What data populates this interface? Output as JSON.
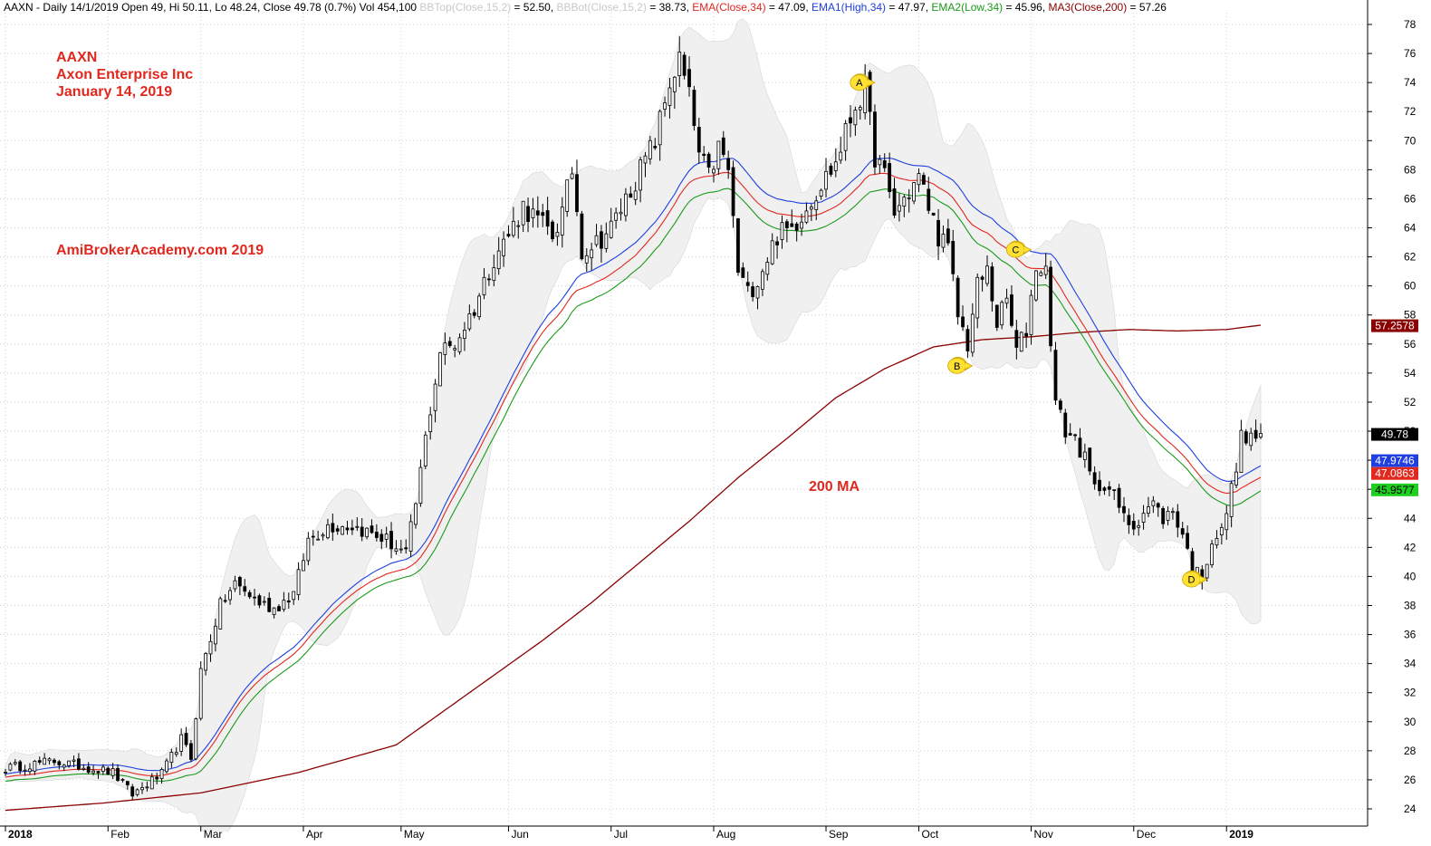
{
  "header": {
    "symbol": "AAXN",
    "segments": [
      {
        "text": "AAXN - Daily 14/1/2019 Open 49, Hi 50.11, Lo 48.24, Close 49.78 (0.7%) Vol 454,100 ",
        "color": "#000000"
      },
      {
        "text": "BBTop(Close,15,2)",
        "color": "#c8c8c8"
      },
      {
        "text": " = 52.50, ",
        "color": "#000000"
      },
      {
        "text": "BBBot(Close,15,2)",
        "color": "#c8c8c8"
      },
      {
        "text": " = 38.73, ",
        "color": "#000000"
      },
      {
        "text": "EMA(Close,34)",
        "color": "#e0281e"
      },
      {
        "text": " = 47.09, ",
        "color": "#000000"
      },
      {
        "text": "EMA1(High,34)",
        "color": "#1f3fe0"
      },
      {
        "text": " = 47.97, ",
        "color": "#000000"
      },
      {
        "text": "EMA2(Low,34)",
        "color": "#1a9a1a"
      },
      {
        "text": " = 45.96, ",
        "color": "#000000"
      },
      {
        "text": "MA3(Close,200)",
        "color": "#8b0000"
      },
      {
        "text": " = 57.26",
        "color": "#000000"
      }
    ]
  },
  "annotations": {
    "ticker": "AAXN",
    "company": "Axon Enterprise Inc",
    "date": "January 14, 2019",
    "watermark": "AmiBrokerAcademy.com  2019",
    "ma_label": "200 MA"
  },
  "chart_data": {
    "type": "candlestick",
    "y_ticks": [
      24,
      26,
      28,
      30,
      32,
      34,
      36,
      38,
      40,
      42,
      44,
      46,
      48,
      50,
      52,
      54,
      56,
      58,
      60,
      62,
      64,
      66,
      68,
      70,
      72,
      74,
      76,
      78
    ],
    "ylim": [
      23,
      79.5
    ],
    "x_months": [
      {
        "label": "2018",
        "bold": true
      },
      {
        "label": "Feb",
        "bold": false
      },
      {
        "label": "Mar",
        "bold": false
      },
      {
        "label": "Apr",
        "bold": false
      },
      {
        "label": "May",
        "bold": false
      },
      {
        "label": "Jun",
        "bold": false
      },
      {
        "label": "Jul",
        "bold": false
      },
      {
        "label": "Aug",
        "bold": false
      },
      {
        "label": "Sep",
        "bold": false
      },
      {
        "label": "Oct",
        "bold": false
      },
      {
        "label": "Nov",
        "bold": false
      },
      {
        "label": "Dec",
        "bold": false
      },
      {
        "label": "2019",
        "bold": true
      }
    ],
    "month_start_bar": [
      0,
      21,
      40,
      61,
      81,
      103,
      124,
      145,
      168,
      187,
      210,
      231,
      250
    ],
    "anchors": [
      [
        0,
        26.8
      ],
      [
        10,
        27.3
      ],
      [
        22,
        26.5
      ],
      [
        26,
        25.0
      ],
      [
        32,
        26.4
      ],
      [
        36,
        28.8
      ],
      [
        38,
        27.5
      ],
      [
        40,
        33.5
      ],
      [
        44,
        38.0
      ],
      [
        47,
        39.5
      ],
      [
        52,
        38.2
      ],
      [
        55,
        37.8
      ],
      [
        59,
        38.8
      ],
      [
        62,
        42.5
      ],
      [
        66,
        43.5
      ],
      [
        71,
        43.5
      ],
      [
        78,
        42.5
      ],
      [
        82,
        41.5
      ],
      [
        84,
        45.0
      ],
      [
        86,
        49.5
      ],
      [
        89,
        55.5
      ],
      [
        92,
        56.0
      ],
      [
        96,
        58.5
      ],
      [
        100,
        62.0
      ],
      [
        103,
        63.5
      ],
      [
        106,
        65.5
      ],
      [
        109,
        64.5
      ],
      [
        112,
        63.5
      ],
      [
        114,
        65.0
      ],
      [
        116,
        68.0
      ],
      [
        118,
        62.5
      ],
      [
        121,
        63.0
      ],
      [
        124,
        64.0
      ],
      [
        127,
        66.0
      ],
      [
        130,
        68.0
      ],
      [
        133,
        70.0
      ],
      [
        136,
        74.0
      ],
      [
        138,
        75.5
      ],
      [
        140,
        73.0
      ],
      [
        142,
        69.0
      ],
      [
        144,
        67.5
      ],
      [
        146,
        69.5
      ],
      [
        148,
        68.0
      ],
      [
        150,
        61.0
      ],
      [
        152,
        59.5
      ],
      [
        154,
        60.5
      ],
      [
        156,
        62.0
      ],
      [
        158,
        63.5
      ],
      [
        161,
        64.0
      ],
      [
        164,
        65.5
      ],
      [
        167,
        67.0
      ],
      [
        170,
        68.5
      ],
      [
        172,
        70.5
      ],
      [
        174,
        72.5
      ],
      [
        176,
        73.5
      ],
      [
        178,
        69.0
      ],
      [
        180,
        67.5
      ],
      [
        182,
        65.0
      ],
      [
        184,
        66.0
      ],
      [
        187,
        67.5
      ],
      [
        189,
        65.5
      ],
      [
        191,
        63.5
      ],
      [
        193,
        62.5
      ],
      [
        195,
        58.0
      ],
      [
        197,
        56.0
      ],
      [
        199,
        60.0
      ],
      [
        201,
        61.0
      ],
      [
        203,
        57.5
      ],
      [
        205,
        59.0
      ],
      [
        207,
        55.5
      ],
      [
        209,
        57.0
      ],
      [
        211,
        61.5
      ],
      [
        213,
        61.0
      ],
      [
        215,
        52.0
      ],
      [
        217,
        50.0
      ],
      [
        219,
        49.5
      ],
      [
        221,
        48.0
      ],
      [
        223,
        46.0
      ],
      [
        225,
        46.5
      ],
      [
        227,
        45.5
      ],
      [
        229,
        44.0
      ],
      [
        231,
        43.5
      ],
      [
        233,
        44.5
      ],
      [
        235,
        45.0
      ],
      [
        237,
        44.0
      ],
      [
        239,
        44.5
      ],
      [
        241,
        43.0
      ],
      [
        243,
        40.5
      ],
      [
        245,
        40.0
      ],
      [
        247,
        42.5
      ],
      [
        249,
        43.0
      ],
      [
        251,
        46.0
      ],
      [
        253,
        49.5
      ],
      [
        255,
        49.5
      ],
      [
        257,
        49.8
      ]
    ],
    "ma200_anchors": [
      [
        0,
        23.9
      ],
      [
        20,
        24.4
      ],
      [
        40,
        25.1
      ],
      [
        50,
        25.8
      ],
      [
        60,
        26.5
      ],
      [
        80,
        28.4
      ],
      [
        90,
        30.8
      ],
      [
        100,
        33.2
      ],
      [
        110,
        35.6
      ],
      [
        120,
        38.2
      ],
      [
        130,
        41.0
      ],
      [
        140,
        43.8
      ],
      [
        150,
        46.8
      ],
      [
        160,
        49.5
      ],
      [
        170,
        52.3
      ],
      [
        180,
        54.3
      ],
      [
        190,
        55.8
      ],
      [
        200,
        56.3
      ],
      [
        210,
        56.5
      ],
      [
        220,
        56.8
      ],
      [
        230,
        57.0
      ],
      [
        240,
        56.9
      ],
      [
        250,
        57.0
      ],
      [
        257,
        57.3
      ]
    ],
    "series_colors": {
      "ema_close": "#e0281e",
      "ema_high": "#1f3fe0",
      "ema_low": "#1a9a1a",
      "ma200": "#8b0000",
      "bbands": "#f0f0f0",
      "bbands_edge": "#d6d6d6"
    },
    "price_tags": [
      {
        "label": "57.2578",
        "value": 57.26,
        "bg": "#8b0000",
        "fg": "#ffffff"
      },
      {
        "label": "49.78",
        "value": 49.78,
        "bg": "#000000",
        "fg": "#ffffff"
      },
      {
        "label": "47.9746",
        "value": 47.97,
        "bg": "#1f3fe0",
        "fg": "#ffffff"
      },
      {
        "label": "47.0863",
        "value": 47.09,
        "bg": "#e0281e",
        "fg": "#ffffff"
      },
      {
        "label": "45.9577",
        "value": 45.96,
        "bg": "#1fcf1f",
        "fg": "#000000"
      }
    ],
    "markers": [
      {
        "label": "A",
        "bar": 175,
        "value": 74.0
      },
      {
        "label": "B",
        "bar": 195,
        "value": 54.5
      },
      {
        "label": "C",
        "bar": 207,
        "value": 62.5
      },
      {
        "label": "D",
        "bar": 243,
        "value": 39.8
      }
    ]
  }
}
